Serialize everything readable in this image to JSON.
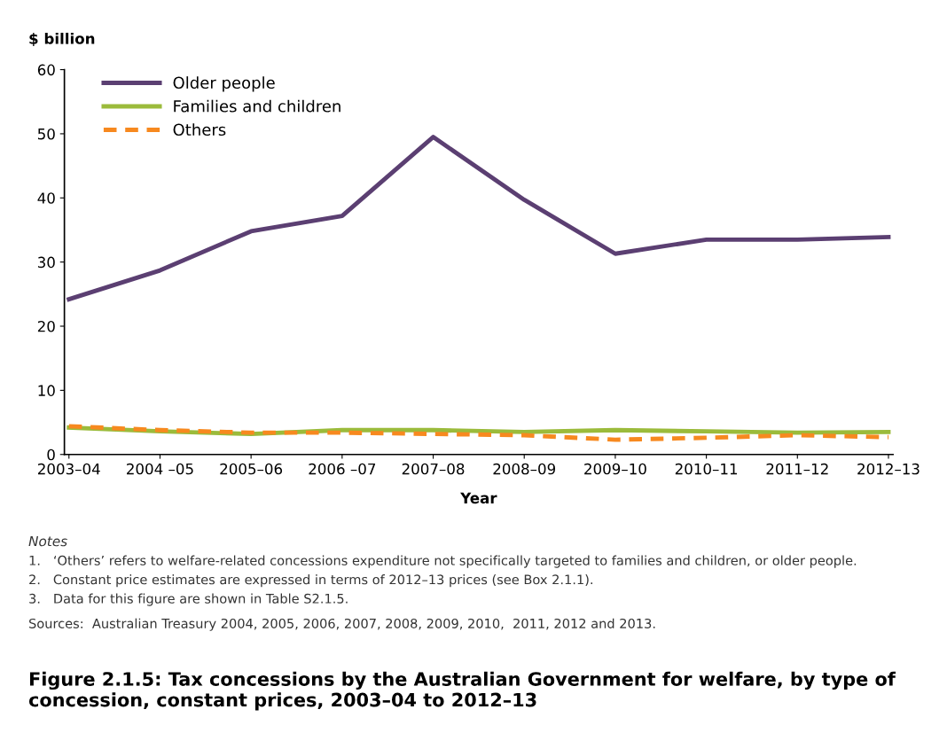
{
  "chart_data": {
    "type": "line",
    "title": "Figure 2.1.5: Tax concessions by the Australian Government for welfare, by type of concession, constant prices, 2003–04 to 2012–13",
    "ylabel": "$ billion",
    "xlabel": "Year",
    "categories": [
      "2003–04",
      "2004 –05",
      "2005–06",
      "2006 –07",
      "2007–08",
      "2008–09",
      "2009–10",
      "2010–11",
      "2011–12",
      "2012–13"
    ],
    "series": [
      {
        "name": "Older people",
        "color": "#5b3f72",
        "line_style": "solid",
        "values": [
          24.2,
          28.7,
          34.8,
          37.2,
          49.5,
          39.7,
          31.3,
          33.5,
          33.5,
          33.9
        ]
      },
      {
        "name": "Families and children",
        "color": "#9bbb3b",
        "line_style": "solid",
        "values": [
          4.2,
          3.6,
          3.2,
          3.8,
          3.8,
          3.5,
          3.8,
          3.6,
          3.4,
          3.5
        ]
      },
      {
        "name": "Others",
        "color": "#f7891f",
        "line_style": "dashed",
        "values": [
          4.4,
          3.8,
          3.4,
          3.4,
          3.2,
          3.0,
          2.3,
          2.6,
          3.0,
          2.7
        ]
      }
    ],
    "ylim": [
      0,
      60
    ],
    "yticks": [
      0,
      10,
      20,
      30,
      40,
      50,
      60
    ],
    "grid": false,
    "legend": "top left",
    "marker": "none",
    "annotations": [
      "Notes",
      "1.   ‘Others’ refers to welfare-related concessions expenditure not specifically targeted to families and children, or older people.",
      "2.   Constant price estimates are expressed in terms of 2012–13 prices (see Box 2.1.1).",
      "3.   Data for this figure are shown in Table S2.1.5.",
      "Sources:  Australian Treasury 2004, 2005, 2006, 2007, 2008, 2009, 2010,  2011, 2012 and 2013."
    ]
  }
}
